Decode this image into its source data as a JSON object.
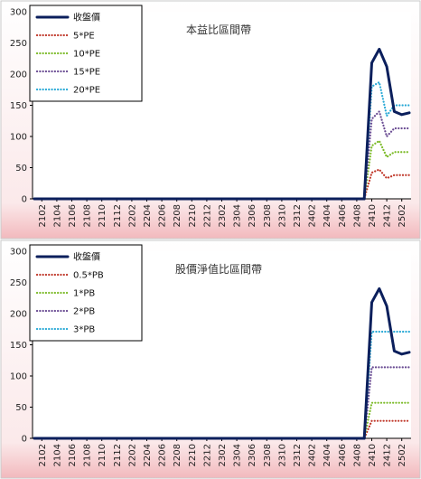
{
  "chart_data": [
    {
      "type": "line",
      "title": "本益比區間帶",
      "ylim": [
        0,
        300
      ],
      "yticks": [
        "0",
        "50",
        "100",
        "150",
        "200",
        "250",
        "300"
      ],
      "xticks": [
        "2102",
        "2104",
        "2106",
        "2108",
        "2110",
        "2112",
        "2202",
        "2204",
        "2206",
        "2208",
        "2210",
        "2212",
        "2302",
        "2304",
        "2306",
        "2308",
        "2310",
        "2312",
        "2402",
        "2404",
        "2406",
        "2408",
        "2410",
        "2412",
        "2502"
      ],
      "x": [
        "2101",
        "2102",
        "2103",
        "2104",
        "2105",
        "2106",
        "2107",
        "2108",
        "2109",
        "2110",
        "2111",
        "2112",
        "2201",
        "2202",
        "2203",
        "2204",
        "2205",
        "2206",
        "2207",
        "2208",
        "2209",
        "2210",
        "2211",
        "2212",
        "2301",
        "2302",
        "2303",
        "2304",
        "2305",
        "2306",
        "2307",
        "2308",
        "2309",
        "2310",
        "2311",
        "2312",
        "2401",
        "2402",
        "2403",
        "2404",
        "2405",
        "2406",
        "2407",
        "2408",
        "2409",
        "2410",
        "2411",
        "2412",
        "2501",
        "2502",
        "2503"
      ],
      "legend_position": "top-left",
      "series": [
        {
          "name": "收盤價",
          "color": "#0b1f5c",
          "style": "solid",
          "values": [
            0,
            0,
            0,
            0,
            0,
            0,
            0,
            0,
            0,
            0,
            0,
            0,
            0,
            0,
            0,
            0,
            0,
            0,
            0,
            0,
            0,
            0,
            0,
            0,
            0,
            0,
            0,
            0,
            0,
            0,
            0,
            0,
            0,
            0,
            0,
            0,
            0,
            0,
            0,
            0,
            0,
            0,
            0,
            0,
            0,
            218,
            240,
            212,
            140,
            135,
            138
          ]
        },
        {
          "name": "5*PE",
          "color": "#c0392b",
          "style": "dotted",
          "values": [
            0,
            0,
            0,
            0,
            0,
            0,
            0,
            0,
            0,
            0,
            0,
            0,
            0,
            0,
            0,
            0,
            0,
            0,
            0,
            0,
            0,
            0,
            0,
            0,
            0,
            0,
            0,
            0,
            0,
            0,
            0,
            0,
            0,
            0,
            0,
            0,
            0,
            0,
            0,
            0,
            0,
            0,
            0,
            0,
            0,
            42,
            47,
            33,
            38,
            38,
            38
          ]
        },
        {
          "name": "10*PE",
          "color": "#7dbb2a",
          "style": "dotted",
          "values": [
            0,
            0,
            0,
            0,
            0,
            0,
            0,
            0,
            0,
            0,
            0,
            0,
            0,
            0,
            0,
            0,
            0,
            0,
            0,
            0,
            0,
            0,
            0,
            0,
            0,
            0,
            0,
            0,
            0,
            0,
            0,
            0,
            0,
            0,
            0,
            0,
            0,
            0,
            0,
            0,
            0,
            0,
            0,
            0,
            0,
            85,
            93,
            67,
            75,
            75,
            75
          ]
        },
        {
          "name": "15*PE",
          "color": "#6a4c93",
          "style": "dotted",
          "values": [
            0,
            0,
            0,
            0,
            0,
            0,
            0,
            0,
            0,
            0,
            0,
            0,
            0,
            0,
            0,
            0,
            0,
            0,
            0,
            0,
            0,
            0,
            0,
            0,
            0,
            0,
            0,
            0,
            0,
            0,
            0,
            0,
            0,
            0,
            0,
            0,
            0,
            0,
            0,
            0,
            0,
            0,
            0,
            0,
            0,
            128,
            140,
            100,
            113,
            113,
            113
          ]
        },
        {
          "name": "20*PE",
          "color": "#29a9d6",
          "style": "dotted",
          "values": [
            0,
            0,
            0,
            0,
            0,
            0,
            0,
            0,
            0,
            0,
            0,
            0,
            0,
            0,
            0,
            0,
            0,
            0,
            0,
            0,
            0,
            0,
            0,
            0,
            0,
            0,
            0,
            0,
            0,
            0,
            0,
            0,
            0,
            0,
            0,
            0,
            0,
            0,
            0,
            0,
            0,
            0,
            0,
            0,
            0,
            180,
            187,
            133,
            150,
            150,
            150
          ]
        }
      ]
    },
    {
      "type": "line",
      "title": "股價淨值比區間帶",
      "ylim": [
        0,
        300
      ],
      "yticks": [
        "0",
        "50",
        "100",
        "150",
        "200",
        "250",
        "300"
      ],
      "xticks": [
        "2102",
        "2104",
        "2106",
        "2108",
        "2110",
        "2112",
        "2202",
        "2204",
        "2206",
        "2208",
        "2210",
        "2212",
        "2302",
        "2304",
        "2306",
        "2308",
        "2310",
        "2312",
        "2402",
        "2404",
        "2406",
        "2408",
        "2410",
        "2412",
        "2502"
      ],
      "x": [
        "2101",
        "2102",
        "2103",
        "2104",
        "2105",
        "2106",
        "2107",
        "2108",
        "2109",
        "2110",
        "2111",
        "2112",
        "2201",
        "2202",
        "2203",
        "2204",
        "2205",
        "2206",
        "2207",
        "2208",
        "2209",
        "2210",
        "2211",
        "2212",
        "2301",
        "2302",
        "2303",
        "2304",
        "2305",
        "2306",
        "2307",
        "2308",
        "2309",
        "2310",
        "2311",
        "2312",
        "2401",
        "2402",
        "2403",
        "2404",
        "2405",
        "2406",
        "2407",
        "2408",
        "2409",
        "2410",
        "2411",
        "2412",
        "2501",
        "2502",
        "2503"
      ],
      "legend_position": "top-left",
      "series": [
        {
          "name": "收盤價",
          "color": "#0b1f5c",
          "style": "solid",
          "values": [
            0,
            0,
            0,
            0,
            0,
            0,
            0,
            0,
            0,
            0,
            0,
            0,
            0,
            0,
            0,
            0,
            0,
            0,
            0,
            0,
            0,
            0,
            0,
            0,
            0,
            0,
            0,
            0,
            0,
            0,
            0,
            0,
            0,
            0,
            0,
            0,
            0,
            0,
            0,
            0,
            0,
            0,
            0,
            0,
            0,
            218,
            240,
            212,
            140,
            135,
            138
          ]
        },
        {
          "name": "0.5*PB",
          "color": "#c0392b",
          "style": "dotted",
          "values": [
            0,
            0,
            0,
            0,
            0,
            0,
            0,
            0,
            0,
            0,
            0,
            0,
            0,
            0,
            0,
            0,
            0,
            0,
            0,
            0,
            0,
            0,
            0,
            0,
            0,
            0,
            0,
            0,
            0,
            0,
            0,
            0,
            0,
            0,
            0,
            0,
            0,
            0,
            0,
            0,
            0,
            0,
            0,
            0,
            0,
            28,
            28,
            28,
            28,
            28,
            28
          ]
        },
        {
          "name": "1*PB",
          "color": "#7dbb2a",
          "style": "dotted",
          "values": [
            0,
            0,
            0,
            0,
            0,
            0,
            0,
            0,
            0,
            0,
            0,
            0,
            0,
            0,
            0,
            0,
            0,
            0,
            0,
            0,
            0,
            0,
            0,
            0,
            0,
            0,
            0,
            0,
            0,
            0,
            0,
            0,
            0,
            0,
            0,
            0,
            0,
            0,
            0,
            0,
            0,
            0,
            0,
            0,
            0,
            57,
            57,
            57,
            57,
            57,
            57
          ]
        },
        {
          "name": "2*PB",
          "color": "#6a4c93",
          "style": "dotted",
          "values": [
            0,
            0,
            0,
            0,
            0,
            0,
            0,
            0,
            0,
            0,
            0,
            0,
            0,
            0,
            0,
            0,
            0,
            0,
            0,
            0,
            0,
            0,
            0,
            0,
            0,
            0,
            0,
            0,
            0,
            0,
            0,
            0,
            0,
            0,
            0,
            0,
            0,
            0,
            0,
            0,
            0,
            0,
            0,
            0,
            0,
            114,
            114,
            114,
            114,
            114,
            114
          ]
        },
        {
          "name": "3*PB",
          "color": "#29a9d6",
          "style": "dotted",
          "values": [
            0,
            0,
            0,
            0,
            0,
            0,
            0,
            0,
            0,
            0,
            0,
            0,
            0,
            0,
            0,
            0,
            0,
            0,
            0,
            0,
            0,
            0,
            0,
            0,
            0,
            0,
            0,
            0,
            0,
            0,
            0,
            0,
            0,
            0,
            0,
            0,
            0,
            0,
            0,
            0,
            0,
            0,
            0,
            0,
            0,
            171,
            171,
            171,
            171,
            171,
            171
          ]
        }
      ]
    }
  ]
}
